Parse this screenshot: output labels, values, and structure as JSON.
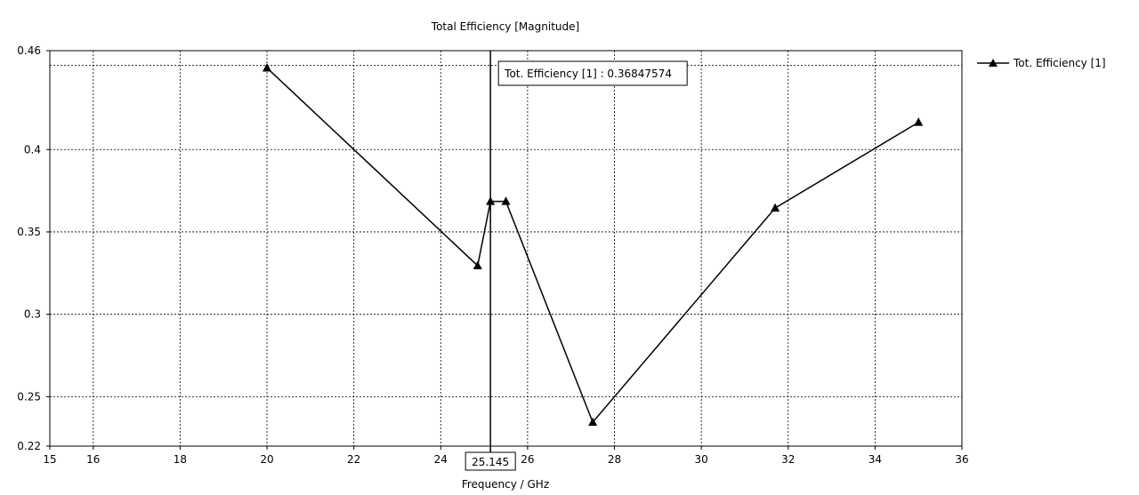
{
  "chart_data": {
    "type": "line",
    "title": "Total Efficiency [Magnitude]",
    "xlabel": "Frequency / GHz",
    "ylabel": "",
    "xlim": [
      15,
      36
    ],
    "ylim": [
      0.22,
      0.46
    ],
    "x_ticks": [
      15,
      16,
      18,
      20,
      22,
      24,
      26,
      28,
      30,
      32,
      34,
      36
    ],
    "y_ticks": [
      0.22,
      0.25,
      0.3,
      0.35,
      0.4,
      0.46
    ],
    "x_grid": [
      16,
      18,
      20,
      22,
      24,
      26,
      28,
      30,
      32,
      34
    ],
    "y_grid": [
      0.25,
      0.3,
      0.35,
      0.4,
      0.451
    ],
    "grid": true,
    "legend_position": "right",
    "series": [
      {
        "name": "Tot. Efficiency [1]",
        "color": "#000000",
        "marker": "triangle",
        "x": [
          20.0,
          24.85,
          25.145,
          25.5,
          27.5,
          31.7,
          35.0
        ],
        "y": [
          0.4495,
          0.3295,
          0.3685,
          0.3685,
          0.2345,
          0.3645,
          0.4165
        ]
      }
    ],
    "marker_line": {
      "x": 25.145,
      "x_label": "25.145",
      "readout": "Tot. Efficiency [1] : 0.36847574"
    }
  }
}
